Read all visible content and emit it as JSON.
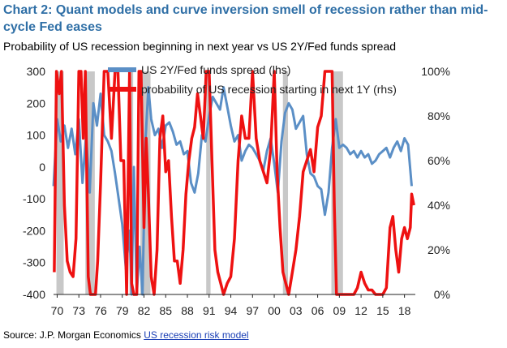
{
  "title": "Chart 2: Quant models and curve inversion smell of recession rather than mid-cycle Fed eases",
  "subtitle": "Probability of US recession beginning in next year vs US 2Y/Fed funds spread",
  "source": {
    "prefix": "Source: J.P. Morgan Economics ",
    "link": "US recession risk model"
  },
  "colors": {
    "title": "#2f6fa6",
    "spread": "#5b8fc6",
    "probability": "#ee1111",
    "recession": "#c8c8c8"
  },
  "chart_data": {
    "type": "line",
    "x_tick_labels": [
      "70",
      "73",
      "76",
      "79",
      "82",
      "85",
      "88",
      "91",
      "94",
      "97",
      "00",
      "03",
      "06",
      "09",
      "12",
      "15",
      "18"
    ],
    "x_tick_years": [
      1970,
      1973,
      1976,
      1979,
      1982,
      1985,
      1988,
      1991,
      1994,
      1997,
      2000,
      2003,
      2006,
      2009,
      2012,
      2015,
      2018
    ],
    "xlim": [
      1969.5,
      2019.5
    ],
    "y_left": {
      "label": "US 2Y/Fed funds spread (lhs)",
      "ylim": [
        -400,
        300
      ],
      "ticks": [
        "300",
        "200",
        "100",
        "0",
        "-100",
        "-200",
        "-300",
        "-400"
      ]
    },
    "y_right": {
      "label": "probability of US recession starting in next 1Y (rhs)",
      "ylim": [
        0,
        100
      ],
      "ticks": [
        "100%",
        "80%",
        "60%",
        "40%",
        "20%",
        "0%"
      ]
    },
    "recessions": [
      [
        1969.9,
        1970.9
      ],
      [
        1973.9,
        1975.2
      ],
      [
        1980.0,
        1980.5
      ],
      [
        1981.5,
        1982.9
      ],
      [
        1990.6,
        1991.2
      ],
      [
        2001.2,
        2001.9
      ],
      [
        2007.9,
        2009.5
      ]
    ],
    "series": [
      {
        "name": "US 2Y/Fed funds spread (lhs)",
        "axis": "left",
        "x": [
          1969.5,
          1970.0,
          1970.5,
          1971.0,
          1971.5,
          1972.0,
          1972.5,
          1973.0,
          1973.5,
          1974.0,
          1974.5,
          1975.0,
          1975.5,
          1976.0,
          1976.5,
          1977.0,
          1977.5,
          1978.0,
          1978.5,
          1979.0,
          1979.5,
          1980.0,
          1980.3,
          1980.6,
          1981.0,
          1981.4,
          1981.8,
          1982.2,
          1982.6,
          1983.0,
          1983.5,
          1984.0,
          1984.5,
          1985.0,
          1985.5,
          1986.0,
          1986.5,
          1987.0,
          1987.5,
          1988.0,
          1988.5,
          1989.0,
          1989.5,
          1990.0,
          1990.5,
          1991.0,
          1991.5,
          1992.0,
          1992.5,
          1993.0,
          1993.5,
          1994.0,
          1994.5,
          1995.0,
          1995.5,
          1996.0,
          1996.5,
          1997.0,
          1997.5,
          1998.0,
          1998.5,
          1999.0,
          1999.5,
          2000.0,
          2000.5,
          2001.0,
          2001.5,
          2002.0,
          2002.5,
          2003.0,
          2003.5,
          2004.0,
          2004.5,
          2005.0,
          2005.5,
          2006.0,
          2006.5,
          2007.0,
          2007.5,
          2008.0,
          2008.5,
          2009.0,
          2009.5,
          2010.0,
          2010.5,
          2011.0,
          2011.5,
          2012.0,
          2012.5,
          2013.0,
          2013.5,
          2014.0,
          2014.5,
          2015.0,
          2015.5,
          2016.0,
          2016.5,
          2017.0,
          2017.5,
          2018.0,
          2018.5,
          2019.0
        ],
        "values": [
          -60,
          150,
          80,
          130,
          60,
          120,
          40,
          150,
          -50,
          100,
          -80,
          200,
          130,
          230,
          100,
          80,
          50,
          -20,
          -100,
          -180,
          -320,
          -200,
          -400,
          0,
          -400,
          -250,
          -400,
          80,
          250,
          150,
          100,
          120,
          60,
          130,
          140,
          110,
          70,
          80,
          40,
          50,
          -50,
          -80,
          -20,
          100,
          80,
          160,
          220,
          200,
          180,
          250,
          190,
          130,
          80,
          100,
          20,
          50,
          70,
          60,
          40,
          20,
          -10,
          50,
          90,
          10,
          -80,
          80,
          170,
          200,
          180,
          120,
          140,
          160,
          40,
          -20,
          -30,
          -60,
          -70,
          -150,
          -80,
          60,
          150,
          60,
          70,
          60,
          40,
          50,
          30,
          50,
          30,
          40,
          10,
          20,
          40,
          50,
          60,
          30,
          60,
          80,
          50,
          90,
          70,
          -60
        ]
      },
      {
        "name": "probability of US recession starting in next 1Y (rhs)",
        "axis": "right",
        "x": [
          1969.6,
          1969.9,
          1970.3,
          1970.6,
          1971.0,
          1971.4,
          1971.8,
          1972.2,
          1972.6,
          1973.0,
          1973.3,
          1973.6,
          1973.9,
          1974.3,
          1974.6,
          1975.0,
          1975.3,
          1975.6,
          1976.0,
          1976.5,
          1977.0,
          1977.5,
          1978.0,
          1978.4,
          1978.8,
          1979.2,
          1979.6,
          1980.0,
          1980.3,
          1980.6,
          1981.0,
          1981.3,
          1981.6,
          1982.0,
          1982.3,
          1982.6,
          1983.0,
          1983.4,
          1983.8,
          1984.2,
          1984.6,
          1985.0,
          1985.4,
          1985.8,
          1986.2,
          1986.6,
          1987.0,
          1987.4,
          1987.8,
          1988.2,
          1988.6,
          1989.0,
          1989.4,
          1989.8,
          1990.2,
          1990.6,
          1991.0,
          1991.4,
          1991.8,
          1992.2,
          1992.6,
          1993.0,
          1993.5,
          1994.0,
          1994.5,
          1995.0,
          1995.5,
          1996.0,
          1996.5,
          1997.0,
          1997.5,
          1998.0,
          1998.5,
          1999.0,
          1999.5,
          2000.0,
          2000.4,
          2000.8,
          2001.2,
          2001.6,
          2002.0,
          2002.5,
          2003.0,
          2003.5,
          2004.0,
          2004.5,
          2005.0,
          2005.5,
          2006.0,
          2006.5,
          2007.0,
          2007.5,
          2008.0,
          2008.3,
          2008.6,
          2009.0,
          2009.3,
          2009.6,
          2010.0,
          2010.5,
          2011.0,
          2011.5,
          2012.0,
          2012.5,
          2013.0,
          2013.5,
          2014.0,
          2014.5,
          2015.0,
          2015.5,
          2016.0,
          2016.4,
          2016.8,
          2017.2,
          2017.6,
          2018.0,
          2018.4,
          2018.8,
          2019.0,
          2019.3
        ],
        "values": [
          10,
          100,
          90,
          100,
          40,
          15,
          10,
          8,
          25,
          100,
          100,
          70,
          100,
          8,
          0,
          0,
          0,
          15,
          50,
          100,
          100,
          70,
          100,
          100,
          60,
          60,
          0,
          100,
          5,
          0,
          0,
          100,
          100,
          30,
          70,
          45,
          8,
          0,
          20,
          70,
          80,
          55,
          60,
          35,
          15,
          15,
          5,
          20,
          45,
          60,
          70,
          75,
          90,
          80,
          70,
          100,
          100,
          60,
          20,
          10,
          5,
          0,
          5,
          8,
          25,
          60,
          80,
          70,
          70,
          100,
          70,
          60,
          55,
          50,
          65,
          100,
          55,
          30,
          10,
          5,
          0,
          10,
          20,
          35,
          55,
          60,
          65,
          55,
          75,
          80,
          100,
          100,
          100,
          40,
          0,
          0,
          0,
          0,
          0,
          0,
          0,
          3,
          10,
          5,
          2,
          2,
          0,
          0,
          0,
          3,
          30,
          35,
          20,
          10,
          25,
          30,
          25,
          30,
          45,
          40
        ]
      }
    ]
  }
}
